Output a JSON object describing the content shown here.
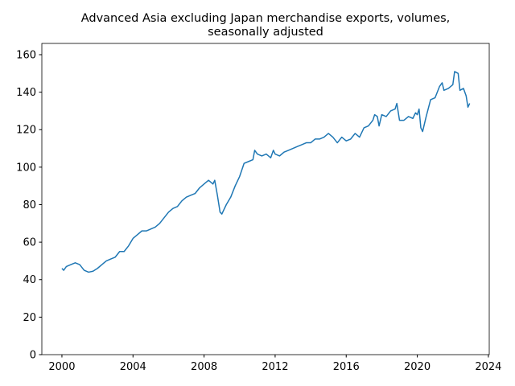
{
  "chart_data": {
    "type": "line",
    "title": [
      "Advanced Asia excluding Japan merchandise exports, volumes,",
      "seasonally adjusted"
    ],
    "x": [
      2000.0,
      2000.1,
      2000.25,
      2000.5,
      2000.75,
      2001.0,
      2001.25,
      2001.5,
      2001.75,
      2002.0,
      2002.25,
      2002.5,
      2002.75,
      2003.0,
      2003.25,
      2003.5,
      2003.75,
      2004.0,
      2004.25,
      2004.5,
      2004.75,
      2005.0,
      2005.25,
      2005.5,
      2005.75,
      2006.0,
      2006.25,
      2006.5,
      2006.75,
      2007.0,
      2007.25,
      2007.5,
      2007.75,
      2008.0,
      2008.25,
      2008.5,
      2008.6,
      2008.75,
      2008.9,
      2009.0,
      2009.25,
      2009.5,
      2009.75,
      2010.0,
      2010.25,
      2010.5,
      2010.75,
      2010.85,
      2011.0,
      2011.25,
      2011.5,
      2011.75,
      2011.9,
      2012.0,
      2012.25,
      2012.5,
      2012.75,
      2013.0,
      2013.25,
      2013.5,
      2013.75,
      2014.0,
      2014.25,
      2014.5,
      2014.75,
      2015.0,
      2015.25,
      2015.5,
      2015.75,
      2016.0,
      2016.25,
      2016.5,
      2016.75,
      2017.0,
      2017.25,
      2017.5,
      2017.6,
      2017.75,
      2017.85,
      2018.0,
      2018.25,
      2018.5,
      2018.75,
      2018.85,
      2019.0,
      2019.25,
      2019.5,
      2019.75,
      2019.9,
      2020.0,
      2020.1,
      2020.2,
      2020.3,
      2020.5,
      2020.75,
      2021.0,
      2021.25,
      2021.4,
      2021.5,
      2021.75,
      2022.0,
      2022.1,
      2022.3,
      2022.4,
      2022.6,
      2022.75,
      2022.85,
      2022.95
    ],
    "series": [
      {
        "color": "#1f77b4",
        "values": [
          46,
          45,
          47,
          48,
          49,
          48,
          45,
          44,
          44.5,
          46,
          48,
          50,
          51,
          52,
          55,
          55,
          58,
          62,
          64,
          66,
          66,
          67,
          68,
          70,
          73,
          76,
          78,
          79,
          82,
          84,
          85,
          86,
          89,
          91,
          93,
          91,
          93,
          85,
          76,
          75,
          80,
          84,
          90,
          95,
          102,
          103,
          104,
          109,
          107,
          106,
          107,
          105,
          109,
          107,
          106,
          108,
          109,
          110,
          111,
          112,
          113,
          113,
          115,
          115,
          116,
          118,
          116,
          113,
          116,
          114,
          115,
          118,
          116,
          121,
          122,
          125,
          128,
          127,
          122,
          128,
          127,
          130,
          131,
          134,
          125,
          125,
          127,
          126,
          129,
          128,
          131,
          121,
          119,
          127,
          136,
          137,
          143,
          145,
          141,
          142,
          144,
          151,
          150,
          141,
          142,
          138,
          132,
          134
        ]
      }
    ],
    "xlim": [
      1998.87,
      2024.05
    ],
    "ylim": [
      0,
      166
    ],
    "xticks": [
      2000,
      2004,
      2008,
      2012,
      2016,
      2020,
      2024
    ],
    "yticks": [
      0,
      20,
      40,
      60,
      80,
      100,
      120,
      140,
      160
    ]
  }
}
